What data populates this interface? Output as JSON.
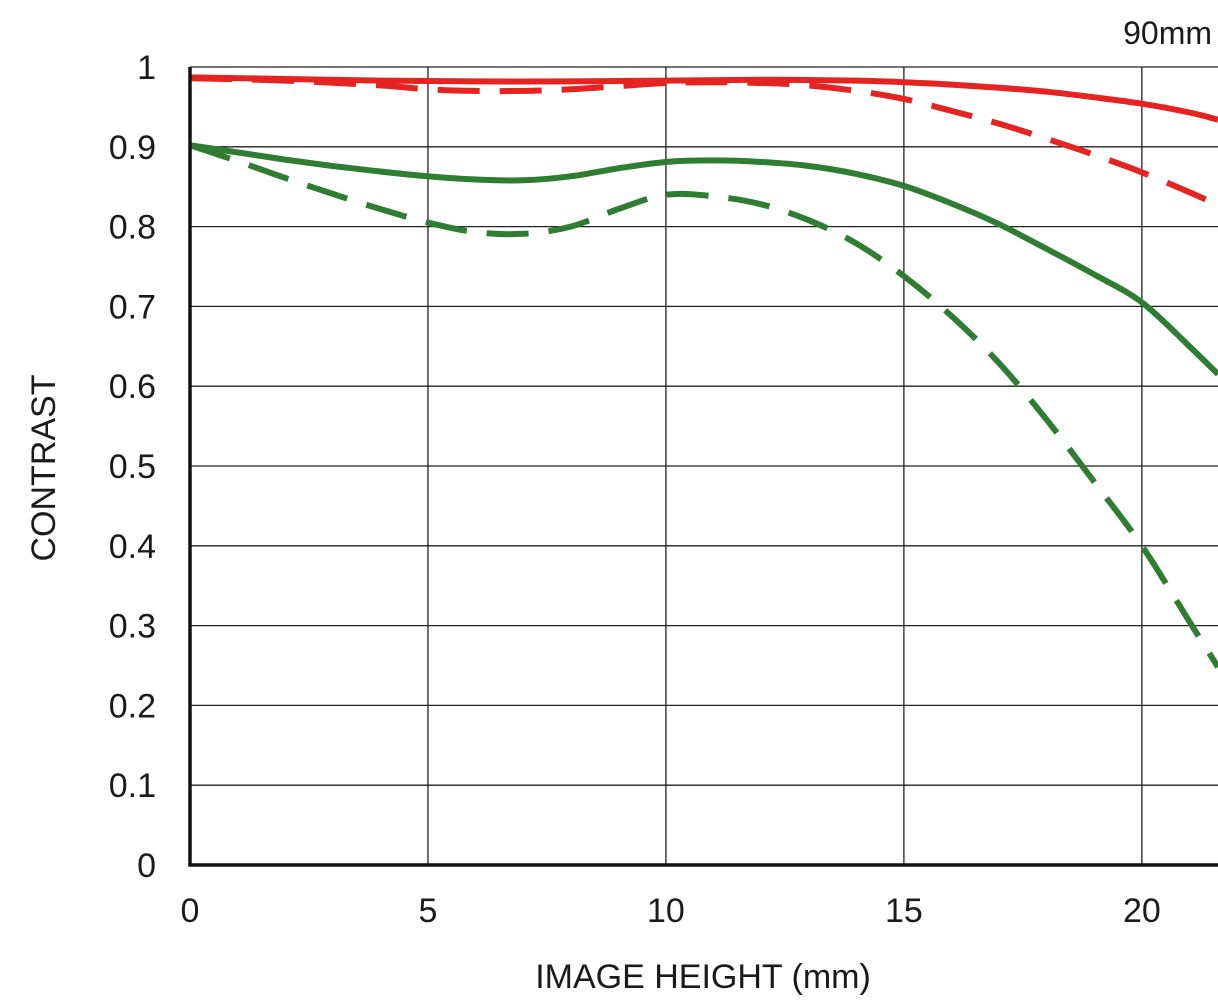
{
  "chart_data": {
    "type": "line",
    "corner_label": "90mm",
    "xlabel": "IMAGE HEIGHT (mm)",
    "ylabel": "CONTRAST",
    "xlim": [
      0,
      21.6
    ],
    "ylim": [
      0,
      1
    ],
    "x_ticks": [
      0,
      5,
      10,
      15,
      20
    ],
    "y_ticks": [
      0,
      0.1,
      0.2,
      0.3,
      0.4,
      0.5,
      0.6,
      0.7,
      0.8,
      0.9,
      1
    ],
    "x_tick_labels": [
      "0",
      "5",
      "10",
      "15",
      "20"
    ],
    "y_tick_labels": [
      "0",
      "0.1",
      "0.2",
      "0.3",
      "0.4",
      "0.5",
      "0.6",
      "0.7",
      "0.8",
      "0.9",
      "1"
    ],
    "grid": true,
    "series": [
      {
        "color": "#e52421",
        "dash": "solid",
        "x": [
          0,
          2,
          4,
          6,
          8,
          10,
          12,
          14,
          15,
          16,
          17,
          18,
          19,
          20,
          21,
          21.6
        ],
        "y": [
          0.987,
          0.985,
          0.983,
          0.982,
          0.982,
          0.983,
          0.984,
          0.983,
          0.981,
          0.978,
          0.974,
          0.969,
          0.962,
          0.954,
          0.943,
          0.934
        ]
      },
      {
        "color": "#e52421",
        "dash": "dashed",
        "x": [
          0,
          2,
          4,
          5,
          6,
          7,
          8,
          9,
          10,
          11,
          12,
          13,
          14,
          15,
          16,
          17,
          18,
          19,
          20,
          21,
          21.6
        ],
        "y": [
          0.986,
          0.983,
          0.977,
          0.972,
          0.97,
          0.97,
          0.972,
          0.976,
          0.98,
          0.981,
          0.98,
          0.977,
          0.97,
          0.96,
          0.945,
          0.929,
          0.91,
          0.89,
          0.868,
          0.843,
          0.827
        ]
      },
      {
        "color": "#2e7d32",
        "dash": "solid",
        "x": [
          0,
          1,
          2,
          3,
          4,
          5,
          6,
          7,
          8,
          9,
          10,
          11,
          12,
          13,
          14,
          15,
          16,
          17,
          18,
          19,
          20,
          21,
          21.6
        ],
        "y": [
          0.902,
          0.893,
          0.884,
          0.876,
          0.869,
          0.863,
          0.859,
          0.858,
          0.863,
          0.873,
          0.881,
          0.883,
          0.881,
          0.876,
          0.866,
          0.851,
          0.829,
          0.803,
          0.772,
          0.74,
          0.705,
          0.65,
          0.615
        ]
      },
      {
        "color": "#2e7d32",
        "dash": "dashed",
        "x": [
          0,
          1,
          2,
          3,
          4,
          5,
          6,
          7,
          8,
          9,
          10,
          11,
          12,
          13,
          14,
          15,
          16,
          17,
          18,
          19,
          20,
          21,
          21.6
        ],
        "y": [
          0.902,
          0.882,
          0.861,
          0.841,
          0.822,
          0.805,
          0.793,
          0.791,
          0.8,
          0.822,
          0.84,
          0.838,
          0.828,
          0.808,
          0.779,
          0.738,
          0.688,
          0.629,
          0.558,
          0.48,
          0.4,
          0.305,
          0.248
        ]
      }
    ]
  }
}
